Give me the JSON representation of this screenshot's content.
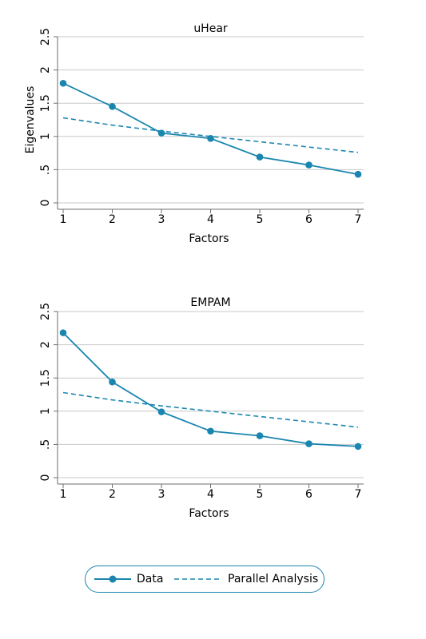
{
  "colors": {
    "series": "#1a86b0",
    "grid": "#c9c9c9",
    "axis": "#6e6e6e"
  },
  "legend": {
    "placement": "bottom",
    "items": [
      "Data",
      "Parallel Analysis"
    ]
  },
  "chart_data": [
    {
      "type": "line",
      "title": "uHear",
      "xlabel": "Factors",
      "ylabel": "Eigenvalues",
      "x": [
        1,
        2,
        3,
        4,
        5,
        6,
        7
      ],
      "xticks": [
        "1",
        "2",
        "3",
        "4",
        "5",
        "6",
        "7"
      ],
      "yticks": [
        "0",
        ".5",
        "1",
        "1.5",
        "2",
        "2.5"
      ],
      "ytick_values": [
        0,
        0.5,
        1,
        1.5,
        2,
        2.5
      ],
      "ylim": [
        0,
        2.5
      ],
      "grid": true,
      "series": [
        {
          "name": "Data",
          "style": "solid-markers",
          "values": [
            1.8,
            1.45,
            1.05,
            0.97,
            0.69,
            0.57,
            0.43
          ]
        },
        {
          "name": "Parallel Analysis",
          "style": "dashed",
          "values": [
            1.28,
            1.17,
            1.08,
            1.0,
            0.92,
            0.84,
            0.76
          ]
        }
      ]
    },
    {
      "type": "line",
      "title": "EMPAM",
      "xlabel": "Factors",
      "ylabel": "",
      "x": [
        1,
        2,
        3,
        4,
        5,
        6,
        7
      ],
      "xticks": [
        "1",
        "2",
        "3",
        "4",
        "5",
        "6",
        "7"
      ],
      "yticks": [
        "0",
        ".5",
        "1",
        "1.5",
        "2",
        "2.5"
      ],
      "ytick_values": [
        0,
        0.5,
        1,
        1.5,
        2,
        2.5
      ],
      "ylim": [
        0,
        2.5
      ],
      "grid": true,
      "series": [
        {
          "name": "Data",
          "style": "solid-markers",
          "values": [
            2.18,
            1.44,
            0.99,
            0.7,
            0.63,
            0.51,
            0.47
          ]
        },
        {
          "name": "Parallel Analysis",
          "style": "dashed",
          "values": [
            1.28,
            1.17,
            1.08,
            1.0,
            0.92,
            0.84,
            0.76
          ]
        }
      ]
    }
  ]
}
